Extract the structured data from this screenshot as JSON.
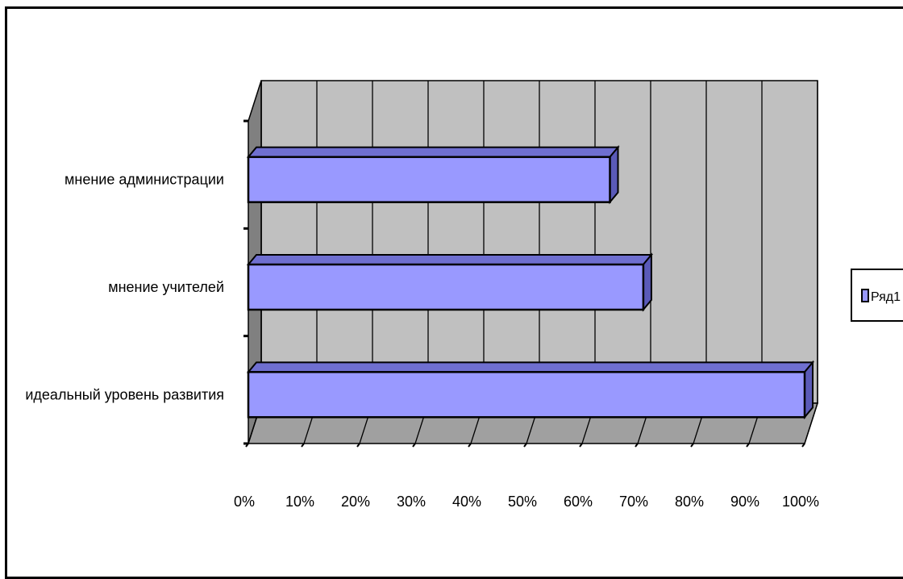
{
  "chart_data": {
    "type": "bar",
    "orientation": "horizontal",
    "three_d": true,
    "categories": [
      "мнение администрации",
      "мнение учителей",
      "идеальный уровень развития"
    ],
    "series": [
      {
        "name": "Ряд1",
        "values": [
          65,
          71,
          100
        ]
      }
    ],
    "x_ticks": [
      "0%",
      "10%",
      "20%",
      "30%",
      "40%",
      "50%",
      "60%",
      "70%",
      "80%",
      "90%",
      "100%"
    ],
    "xlim": [
      0,
      100
    ],
    "unit": "%",
    "grid": true,
    "legend": {
      "entries": [
        "Ряд1"
      ],
      "placement": "right"
    },
    "colors": {
      "bar_face": "#9999ff",
      "bar_top": "#6f6fd0",
      "bar_side": "#5a5ab8",
      "wall": "#c0c0c0",
      "floor": "#a0a0a0",
      "side_wall": "#808080"
    }
  }
}
